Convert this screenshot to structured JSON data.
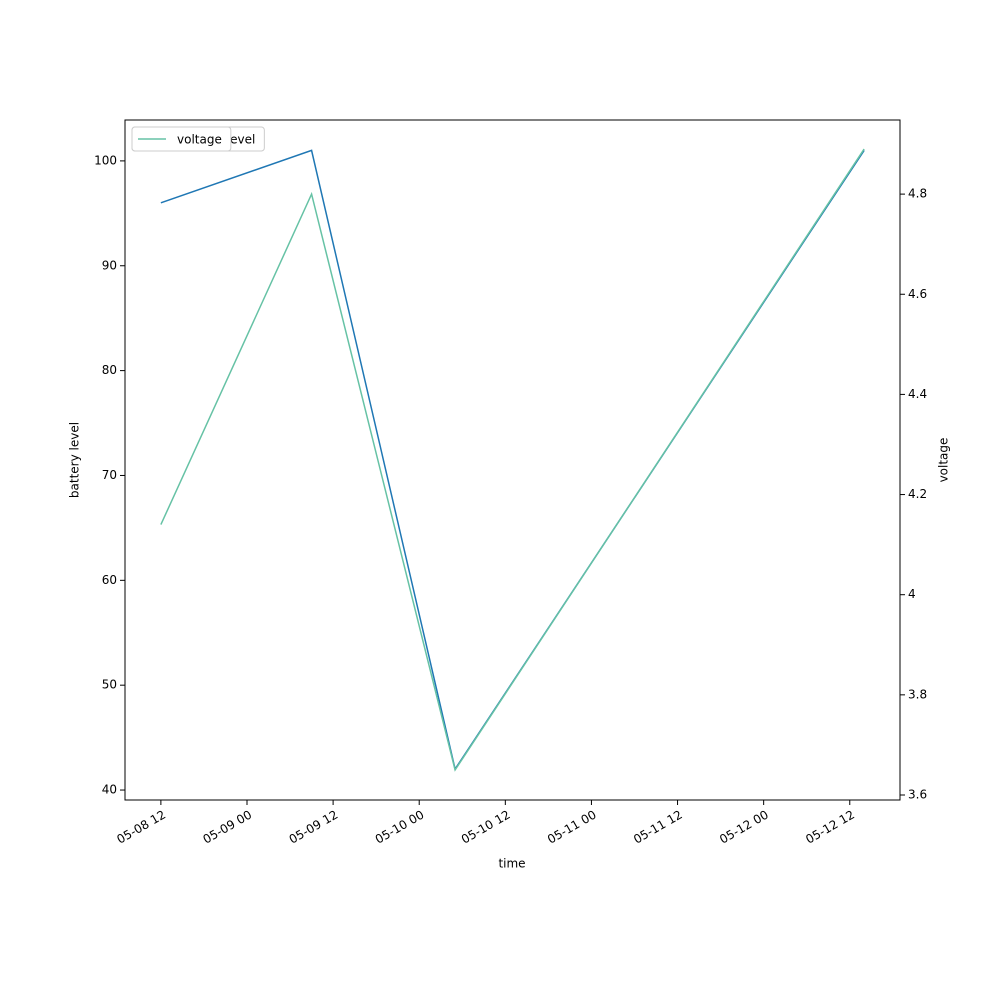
{
  "chart_data": {
    "type": "line",
    "x_label": "time",
    "y_label": "battery level",
    "y2_label": "voltage",
    "x": [
      "05-08 12",
      "05-09 09",
      "05-10 05",
      "05-12 14"
    ],
    "xlim": [
      "05-08 07",
      "05-12 19"
    ],
    "xticks": [
      "05-08 12",
      "05-09 00",
      "05-09 12",
      "05-10 00",
      "05-10 12",
      "05-11 00",
      "05-11 12",
      "05-12 00",
      "05-12 12"
    ],
    "ylim": [
      39.05,
      103.9
    ],
    "yticks": [
      40,
      50,
      60,
      70,
      80,
      90,
      100
    ],
    "y2lim": [
      3.59,
      4.948
    ],
    "y2ticks": [
      3.6,
      3.8,
      4.0,
      4.2,
      4.4,
      4.6,
      4.8
    ],
    "legend": "upper left",
    "series": [
      {
        "name": "battery_level",
        "color": "#1f77b4",
        "values": [
          96,
          101,
          42,
          101
        ]
      },
      {
        "name": "voltage",
        "color": "#66c2a5",
        "axis": "y2",
        "values": [
          4.14,
          4.8,
          3.65,
          4.89
        ]
      }
    ]
  }
}
